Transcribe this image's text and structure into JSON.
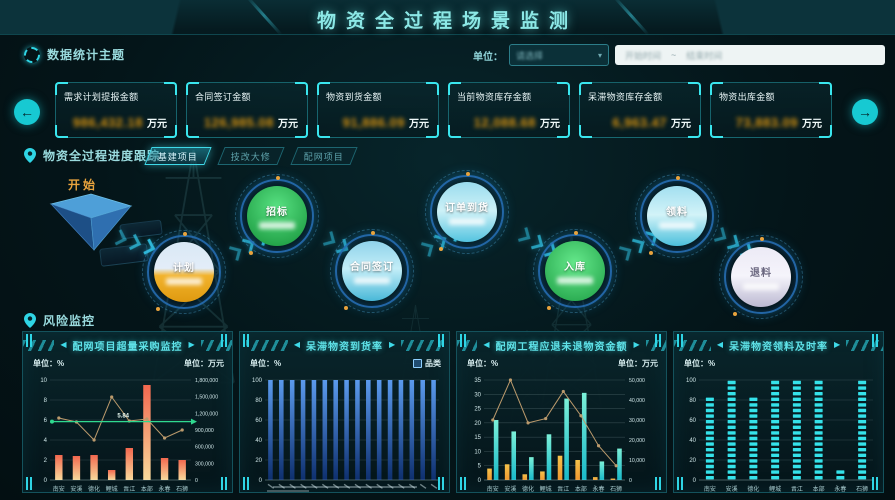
{
  "header": {
    "title": "物资全过程场景监测"
  },
  "icons": {
    "left_arrow": "←",
    "right_arrow": "→",
    "prev_arrow": "◀",
    "next_arrow": "▶",
    "select_caret": "▾"
  },
  "filters": {
    "unit_label": "单位：",
    "unit_value": "请选择",
    "date_start": "开始时间",
    "date_sep": "~",
    "date_end": "结束时间"
  },
  "stats": {
    "section_title": "数据统计主题",
    "cards": [
      {
        "label": "需求计划提报金额",
        "value": "986,432.18",
        "unit": "万元"
      },
      {
        "label": "合同签订金额",
        "value": "126,985.08",
        "unit": "万元"
      },
      {
        "label": "物资到货金额",
        "value": "91,886.09",
        "unit": "万元"
      },
      {
        "label": "当前物资库存金额",
        "value": "12,088.68",
        "unit": "万元"
      },
      {
        "label": "呆滞物资库存金额",
        "value": "6,963.47",
        "unit": "万元"
      },
      {
        "label": "物资出库金额",
        "value": "73,883.09",
        "unit": "万元"
      }
    ]
  },
  "progress": {
    "section_title": "物资全过程进度跟踪",
    "start_label": "开始",
    "tabs": [
      {
        "label": "基建项目",
        "active": true
      },
      {
        "label": "技改大修",
        "active": false
      },
      {
        "label": "配网项目",
        "active": false
      }
    ],
    "nodes": [
      {
        "label": "计划"
      },
      {
        "label": "招标"
      },
      {
        "label": "合同签订"
      },
      {
        "label": "订单到货"
      },
      {
        "label": "入库"
      },
      {
        "label": "领料"
      },
      {
        "label": "退料"
      }
    ]
  },
  "risk": {
    "section_title": "风险监控"
  },
  "chart_data": [
    {
      "type": "bar",
      "title": "配网项目超量采购监控",
      "unit_left": "单位：%",
      "unit_right": "单位：万元",
      "left_ticks": [
        0,
        2,
        4,
        6,
        8,
        10
      ],
      "left_max": 10,
      "right_axis_labels": [
        "0",
        "300,000",
        "600,000",
        "900,000",
        "1,200,000",
        "1,500,000",
        "1,800,000"
      ],
      "categories": [
        "南安",
        "安溪",
        "德化",
        "鲤城",
        "晋江",
        "本部",
        "永春",
        "石狮"
      ],
      "series": [
        {
          "type": "bar",
          "values": [
            2.5,
            2.4,
            2.5,
            1.0,
            3.2,
            9.5,
            2.2,
            2.0
          ],
          "gradient": [
            "#f2684f",
            "#f8d99b"
          ]
        },
        {
          "type": "line",
          "values": [
            6.2,
            5.8,
            4.0,
            8.3,
            5.9,
            6.1,
            4.2,
            5.0
          ],
          "color": "#bb9a6c"
        }
      ],
      "target": {
        "value": 5.84,
        "label": "5.84",
        "color": "#2fd98f"
      }
    },
    {
      "type": "bar",
      "title": "呆滞物资到货率",
      "unit_left": "单位：%",
      "legend": "品类",
      "left_ticks": [
        0,
        20,
        40,
        60,
        80,
        100
      ],
      "left_max": 100,
      "x_labels_illegible": true,
      "series": [
        {
          "type": "bar",
          "values": [
            100,
            100,
            100,
            100,
            100,
            100,
            100,
            100,
            100,
            100,
            100,
            100,
            100,
            100,
            100,
            100
          ],
          "gradient": [
            "#5b9bee",
            "#0e2f6e"
          ]
        }
      ]
    },
    {
      "type": "bar",
      "title": "配网工程应退未退物资金额",
      "unit_left": "单位：%",
      "unit_right": "单位：万元",
      "left_ticks": [
        0,
        5,
        10,
        15,
        20,
        25,
        30,
        35
      ],
      "left_max": 35,
      "right_axis_labels": [
        "0",
        "10,000",
        "20,000",
        "30,000",
        "40,000",
        "50,000"
      ],
      "categories": [
        "南安",
        "安溪",
        "德化",
        "鲤城",
        "晋江",
        "本部",
        "永春",
        "石狮"
      ],
      "series": [
        {
          "type": "bar",
          "values": [
            4,
            5.5,
            2,
            3,
            8.5,
            7,
            1,
            0.5
          ],
          "gradient": [
            "#f6c24a",
            "#ef9830"
          ]
        },
        {
          "type": "bar",
          "values": [
            21,
            17,
            8,
            16,
            28.5,
            30.5,
            6.5,
            11
          ],
          "gradient": [
            "#7bf0d8",
            "#19b9c9"
          ]
        },
        {
          "type": "line",
          "values": [
            21,
            35,
            20,
            21.5,
            31,
            22.5,
            12,
            5
          ],
          "color": "#bb9a6c"
        }
      ]
    },
    {
      "type": "bar",
      "title": "呆滞物资领料及时率",
      "unit_left": "单位：%",
      "left_ticks": [
        0,
        20,
        40,
        60,
        80,
        100
      ],
      "left_max": 100,
      "categories": [
        "南安",
        "安溪",
        "德化",
        "鲤城",
        "晋江",
        "本部",
        "永春",
        "石狮"
      ],
      "series": [
        {
          "type": "dashed",
          "values": [
            85,
            100,
            85,
            100,
            100,
            100,
            15,
            100
          ],
          "color": "#35e2ea"
        }
      ]
    }
  ]
}
